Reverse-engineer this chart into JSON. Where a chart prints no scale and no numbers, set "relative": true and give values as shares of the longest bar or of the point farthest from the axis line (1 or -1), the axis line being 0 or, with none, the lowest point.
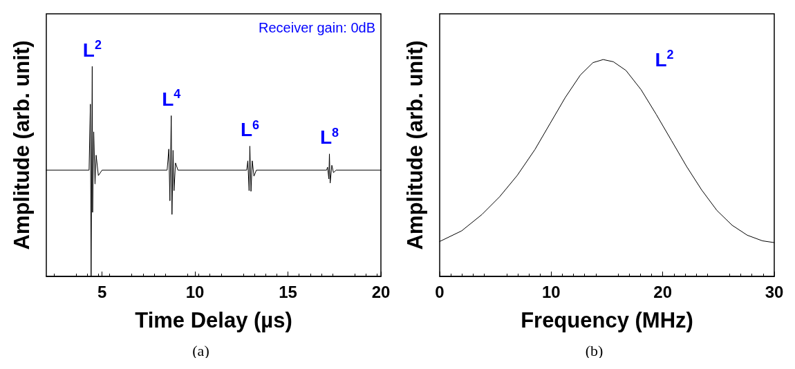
{
  "chart_data": [
    {
      "type": "line",
      "relative": true,
      "xlabel": "Time Delay (µs)",
      "ylabel": "Amplitude (arb. unit)",
      "xlim": [
        2,
        20
      ],
      "xticks": [
        5,
        10,
        15,
        20
      ],
      "grid": false,
      "marker": "none",
      "line_style": "solid",
      "x": [
        2,
        4.3,
        4.37,
        4.41,
        4.47,
        4.49,
        4.55,
        4.62,
        4.68,
        4.8,
        5.0,
        8.5,
        8.59,
        8.65,
        8.72,
        8.76,
        8.82,
        8.87,
        8.95,
        9.08,
        12.78,
        12.84,
        12.91,
        12.95,
        13.01,
        13.08,
        13.17,
        13.3,
        17.08,
        17.13,
        17.2,
        17.23,
        17.27,
        17.36,
        17.45,
        17.59,
        20
      ],
      "series": [
        {
          "color": "#000000",
          "values": [
            0.506,
            0.506,
            0.82,
            0,
            1,
            0.305,
            0.688,
            0.44,
            0.577,
            0.48,
            0.506,
            0.506,
            0.606,
            0.36,
            0.765,
            0.295,
            0.6,
            0.408,
            0.54,
            0.506,
            0.506,
            0.55,
            0.408,
            0.62,
            0.405,
            0.55,
            0.477,
            0.506,
            0.506,
            0.52,
            0.464,
            0.583,
            0.444,
            0.529,
            0.494,
            0.506,
            0.506
          ]
        }
      ],
      "annotations": [
        {
          "text": "L$^{2}$",
          "x": 4.47,
          "y": 1
        },
        {
          "text": "L$^{4}$",
          "x": 8.72,
          "y": 0.765
        },
        {
          "text": "L$^{6}$",
          "x": 12.95,
          "y": 0.62
        },
        {
          "text": "L$^{8}$",
          "x": 17.23,
          "y": 0.583
        },
        "Receiver gain: 0dB",
        "(a)"
      ]
    },
    {
      "type": "line",
      "relative": true,
      "xlabel": "Frequency (MHz)",
      "ylabel": "Amplitude (arb. unit)",
      "xlim": [
        0,
        30
      ],
      "xticks": [
        0,
        10,
        20,
        30
      ],
      "grid": false,
      "marker": "none",
      "line_style": "solid",
      "x": [
        0,
        1.97,
        3.78,
        5.37,
        6.96,
        8.54,
        9.9,
        11.26,
        12.62,
        13.75,
        14.66,
        15.57,
        16.7,
        18.06,
        19.42,
        20.78,
        22.14,
        23.5,
        24.86,
        26.22,
        27.58,
        28.94,
        30
      ],
      "series": [
        {
          "name": "L$^{2}$",
          "color": "#000000",
          "values": [
            0.161,
            0.21,
            0.285,
            0.367,
            0.466,
            0.585,
            0.705,
            0.825,
            0.929,
            0.986,
            1,
            0.99,
            0.95,
            0.861,
            0.747,
            0.627,
            0.507,
            0.398,
            0.304,
            0.236,
            0.19,
            0.164,
            0.156
          ]
        }
      ],
      "annotations": [
        "(b)"
      ]
    }
  ]
}
